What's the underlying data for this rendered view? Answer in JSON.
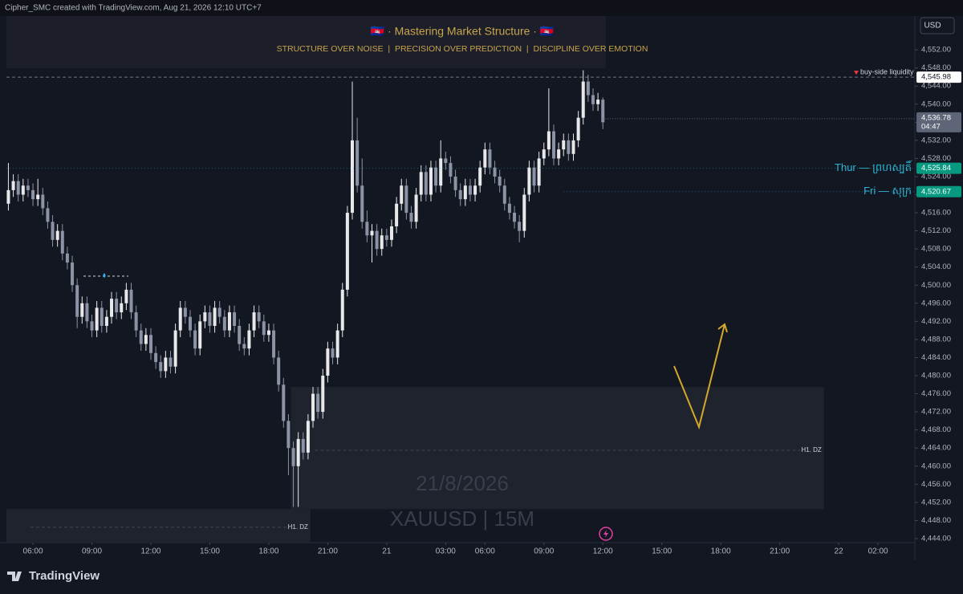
{
  "header": {
    "credit": "Cipher_SMC created with TradingView.com, Aug 21, 2026 12:10 UTC+7",
    "currency": "USD",
    "brand": "TradingView"
  },
  "chart_data": {
    "type": "candlestick",
    "title": "🇰🇭 · Mastering Market Structure · 🇰🇭",
    "subtitle": "STRUCTURE OVER NOISE  |  PRECISION OVER PREDICTION  |  DISCIPLINE OVER EMOTION",
    "watermark_date": "21/8/2026",
    "watermark_symbol": "XAUUSD | 15M",
    "up_color": "#e8e8ea",
    "down_color": "#8b93a5",
    "xlim": [
      -0.4,
      184.5
    ],
    "ylim": [
      4443.1,
      4557.7
    ],
    "xticks": [
      {
        "value": 5,
        "label": "06:00"
      },
      {
        "value": 17,
        "label": "09:00"
      },
      {
        "value": 29,
        "label": "12:00"
      },
      {
        "value": 41,
        "label": "15:00"
      },
      {
        "value": 53,
        "label": "18:00"
      },
      {
        "value": 65,
        "label": "21:00"
      },
      {
        "value": 77,
        "label": "21"
      },
      {
        "value": 89,
        "label": "03:00"
      },
      {
        "value": 97,
        "label": "06:00"
      },
      {
        "value": 109,
        "label": "09:00"
      },
      {
        "value": 121,
        "label": "12:00"
      },
      {
        "value": 133,
        "label": "15:00"
      },
      {
        "value": 145,
        "label": "18:00"
      },
      {
        "value": 157,
        "label": "21:00"
      },
      {
        "value": 169,
        "label": "22"
      },
      {
        "value": 177,
        "label": "02:00"
      }
    ],
    "yticks": [
      {
        "value": 4444,
        "label": "4,444.00"
      },
      {
        "value": 4448,
        "label": "4,448.00"
      },
      {
        "value": 4452,
        "label": "4,452.00"
      },
      {
        "value": 4456,
        "label": "4,456.00"
      },
      {
        "value": 4460,
        "label": "4,460.00"
      },
      {
        "value": 4464,
        "label": "4,464.00"
      },
      {
        "value": 4468,
        "label": "4,468.00"
      },
      {
        "value": 4472,
        "label": "4,472.00"
      },
      {
        "value": 4476,
        "label": "4,476.00"
      },
      {
        "value": 4480,
        "label": "4,480.00"
      },
      {
        "value": 4484,
        "label": "4,484.00"
      },
      {
        "value": 4488,
        "label": "4,488.00"
      },
      {
        "value": 4492,
        "label": "4,492.00"
      },
      {
        "value": 4496,
        "label": "4,496.00"
      },
      {
        "value": 4500,
        "label": "4,500.00"
      },
      {
        "value": 4504,
        "label": "4,504.00"
      },
      {
        "value": 4508,
        "label": "4,508.00"
      },
      {
        "value": 4512,
        "label": "4,512.00"
      },
      {
        "value": 4516,
        "label": "4,516.00"
      },
      {
        "value": 4520,
        "label": "4,520.00"
      },
      {
        "value": 4524,
        "label": "4,524.00"
      },
      {
        "value": 4528,
        "label": "4,528.00"
      },
      {
        "value": 4532,
        "label": "4,532.00"
      },
      {
        "value": 4536,
        "label": "4,536.00"
      },
      {
        "value": 4540,
        "label": "4,540.00"
      },
      {
        "value": 4544,
        "label": "4,544.00"
      },
      {
        "value": 4548,
        "label": "4,548.00"
      },
      {
        "value": 4552,
        "label": "4,552.00"
      }
    ],
    "ohlc": [
      [
        4518,
        4527,
        4516.5,
        4521
      ],
      [
        4521,
        4524.5,
        4519.5,
        4523
      ],
      [
        4523,
        4524.5,
        4518.5,
        4520
      ],
      [
        4520,
        4523.5,
        4518.5,
        4522
      ],
      [
        4522,
        4523.5,
        4519.5,
        4521
      ],
      [
        4521,
        4522.5,
        4517.5,
        4519
      ],
      [
        4519,
        4523.5,
        4517.5,
        4520
      ],
      [
        4520,
        4521.5,
        4515.5,
        4517
      ],
      [
        4517,
        4518.5,
        4512.5,
        4514
      ],
      [
        4514,
        4515.5,
        4508.5,
        4510
      ],
      [
        4510,
        4513.5,
        4508.5,
        4512
      ],
      [
        4512,
        4513.5,
        4505.5,
        4507
      ],
      [
        4507,
        4508.5,
        4503.5,
        4505
      ],
      [
        4505,
        4506.5,
        4498.5,
        4500
      ],
      [
        4500,
        4501.5,
        4490.5,
        4493
      ],
      [
        4493,
        4497.5,
        4491.5,
        4496
      ],
      [
        4496,
        4497.5,
        4490.5,
        4492
      ],
      [
        4492,
        4493.5,
        4488.5,
        4490
      ],
      [
        4490,
        4496.5,
        4488.5,
        4495
      ],
      [
        4495,
        4496.5,
        4489.5,
        4491
      ],
      [
        4491,
        4494.5,
        4489.5,
        4493
      ],
      [
        4493,
        4498.5,
        4491.5,
        4497
      ],
      [
        4497,
        4498.5,
        4492.5,
        4494
      ],
      [
        4494,
        4497.5,
        4492.5,
        4496
      ],
      [
        4496,
        4500.5,
        4494.5,
        4499
      ],
      [
        4499,
        4500.5,
        4492.5,
        4494
      ],
      [
        4494,
        4495.5,
        4488.5,
        4490
      ],
      [
        4490,
        4491.5,
        4485.5,
        4487
      ],
      [
        4487,
        4490.5,
        4485.5,
        4489
      ],
      [
        4489,
        4490.5,
        4483.5,
        4485
      ],
      [
        4485,
        4486.5,
        4481.5,
        4483
      ],
      [
        4483,
        4484.5,
        4479.5,
        4481
      ],
      [
        4481,
        4485.5,
        4479.5,
        4484
      ],
      [
        4484,
        4485.5,
        4480.5,
        4482
      ],
      [
        4482,
        4491.5,
        4480.5,
        4490
      ],
      [
        4490,
        4496.5,
        4488.5,
        4495
      ],
      [
        4495,
        4496.5,
        4491.5,
        4493
      ],
      [
        4493,
        4494.5,
        4488.5,
        4490
      ],
      [
        4490,
        4491.5,
        4484.5,
        4486
      ],
      [
        4486,
        4493.5,
        4484.5,
        4492
      ],
      [
        4492,
        4495.5,
        4490.5,
        4494
      ],
      [
        4494,
        4495.5,
        4489.5,
        4491
      ],
      [
        4491,
        4496.5,
        4489.5,
        4495
      ],
      [
        4495,
        4496.5,
        4491.5,
        4493
      ],
      [
        4493,
        4494.5,
        4488.5,
        4490
      ],
      [
        4490,
        4495.5,
        4488.5,
        4494
      ],
      [
        4494,
        4495.5,
        4489.5,
        4491
      ],
      [
        4491,
        4492.5,
        4485.5,
        4487
      ],
      [
        4487,
        4488.5,
        4484.5,
        4486
      ],
      [
        4486,
        4491.5,
        4484.5,
        4490
      ],
      [
        4490,
        4495.5,
        4488.5,
        4494
      ],
      [
        4494,
        4495.5,
        4490.5,
        4492
      ],
      [
        4492,
        4493.5,
        4487.5,
        4489
      ],
      [
        4489,
        4491.5,
        4487.5,
        4490
      ],
      [
        4490,
        4491.5,
        4482.5,
        4484
      ],
      [
        4484,
        4485.5,
        4476.5,
        4478
      ],
      [
        4478,
        4479.5,
        4468.5,
        4470
      ],
      [
        4470,
        4471.5,
        4458,
        4464
      ],
      [
        4464,
        4465.5,
        4451,
        4460
      ],
      [
        4460,
        4467.5,
        4451,
        4466
      ],
      [
        4466,
        4467.5,
        4461.5,
        4463
      ],
      [
        4463,
        4471.5,
        4461.5,
        4470
      ],
      [
        4470,
        4477.5,
        4468.5,
        4476
      ],
      [
        4476,
        4477.5,
        4470.5,
        4472
      ],
      [
        4472,
        4481.5,
        4470.5,
        4480
      ],
      [
        4480,
        4487.5,
        4478.5,
        4486
      ],
      [
        4486,
        4487.5,
        4482.5,
        4484
      ],
      [
        4484,
        4491.5,
        4482.5,
        4490
      ],
      [
        4490,
        4500.5,
        4488.5,
        4499
      ],
      [
        4499,
        4517.5,
        4497.5,
        4516
      ],
      [
        4516,
        4545,
        4514.5,
        4532
      ],
      [
        4532,
        4537,
        4520.5,
        4522
      ],
      [
        4522,
        4528,
        4512.5,
        4514
      ],
      [
        4514,
        4516.5,
        4509.5,
        4511
      ],
      [
        4511,
        4513.5,
        4505,
        4512
      ],
      [
        4512,
        4513.5,
        4506.5,
        4508
      ],
      [
        4508,
        4512.5,
        4506.5,
        4511
      ],
      [
        4511,
        4512.5,
        4508.5,
        4510
      ],
      [
        4510,
        4514.5,
        4508.5,
        4513
      ],
      [
        4513,
        4519.5,
        4511.5,
        4518
      ],
      [
        4518,
        4523.5,
        4516.5,
        4522
      ],
      [
        4522,
        4523.5,
        4514.5,
        4516
      ],
      [
        4516,
        4517.5,
        4512.5,
        4514
      ],
      [
        4514,
        4521.5,
        4512.5,
        4520
      ],
      [
        4520,
        4526.5,
        4518.5,
        4525
      ],
      [
        4525,
        4526.5,
        4518.5,
        4520
      ],
      [
        4520,
        4527.5,
        4518.5,
        4526
      ],
      [
        4526,
        4527.5,
        4520.5,
        4522
      ],
      [
        4522,
        4532,
        4520.5,
        4528
      ],
      [
        4528,
        4529.5,
        4525.5,
        4527
      ],
      [
        4527,
        4528.5,
        4522.5,
        4524
      ],
      [
        4524,
        4525.5,
        4519.5,
        4521
      ],
      [
        4521,
        4522.5,
        4517.5,
        4519
      ],
      [
        4519,
        4523.5,
        4517.5,
        4522
      ],
      [
        4522,
        4523.5,
        4518.5,
        4520
      ],
      [
        4520,
        4523.5,
        4518.5,
        4522
      ],
      [
        4522,
        4527.5,
        4520.5,
        4526
      ],
      [
        4526,
        4531.5,
        4524.5,
        4530
      ],
      [
        4530,
        4531.5,
        4524.5,
        4526
      ],
      [
        4526,
        4527.5,
        4522.5,
        4524
      ],
      [
        4524,
        4525.5,
        4520.5,
        4522
      ],
      [
        4522,
        4523.5,
        4516.5,
        4518
      ],
      [
        4518,
        4519.5,
        4514.5,
        4516
      ],
      [
        4516,
        4517.5,
        4512.5,
        4514
      ],
      [
        4514,
        4515.5,
        4509.5,
        4512
      ],
      [
        4512,
        4521.5,
        4510.5,
        4520
      ],
      [
        4520,
        4527.5,
        4518.5,
        4526
      ],
      [
        4526,
        4527.5,
        4520.5,
        4522
      ],
      [
        4522,
        4529.5,
        4520.5,
        4528
      ],
      [
        4528,
        4531.5,
        4526.5,
        4530
      ],
      [
        4530,
        4543.5,
        4528.5,
        4534
      ],
      [
        4534,
        4535.5,
        4526.5,
        4528
      ],
      [
        4528,
        4531.5,
        4526.5,
        4530
      ],
      [
        4530,
        4533.5,
        4528.5,
        4532
      ],
      [
        4532,
        4533.5,
        4527.5,
        4529
      ],
      [
        4529,
        4533.5,
        4527.5,
        4532
      ],
      [
        4532,
        4538.5,
        4530.5,
        4537
      ],
      [
        4537,
        4547.5,
        4535.5,
        4545
      ],
      [
        4545,
        4546.5,
        4540.5,
        4542
      ],
      [
        4542,
        4543.5,
        4538.5,
        4540
      ],
      [
        4540,
        4542.5,
        4538.5,
        4541
      ],
      [
        4541,
        4541.5,
        4534.5,
        4536
      ]
    ],
    "last_price": {
      "value": 4536.78,
      "label": "4,536.78"
    },
    "countdown": "04:47",
    "last_price_color": "#5d6577",
    "levels": [
      {
        "name": "buy-side liquidity",
        "price": {
          "value": 4545.98,
          "label": "4,545.98"
        },
        "color": "#d1d4dc",
        "tag_color": "#ffffff",
        "tag_text": "#131722",
        "style": "dashed",
        "start": -0.4
      },
      {
        "name": "Thur — ព្រហស្បតិ៍",
        "price": {
          "value": 4525.84,
          "label": "4,525.84"
        },
        "color": "#29b6d6",
        "tag_color": "#089981",
        "tag_text": "#ffffff",
        "style": "dotted",
        "start": -0.4
      },
      {
        "name": "Fri — សុក្រ",
        "price": {
          "value": 4520.67,
          "label": "4,520.67"
        },
        "color": "#29b6d6",
        "tag_color": "#089981",
        "tag_text": "#ffffff",
        "style": "dotted",
        "start": 113
      }
    ],
    "zones": [
      {
        "label": "H1. DZ",
        "top": 4477.5,
        "bottom": 4450.5,
        "mid": 4463.5,
        "start": 57.5,
        "end": 166
      },
      {
        "label": "H1. DZ",
        "top": 4450.5,
        "bottom": 4443.1,
        "mid": 4446.5,
        "start": -0.4,
        "end": 61.5
      }
    ]
  }
}
